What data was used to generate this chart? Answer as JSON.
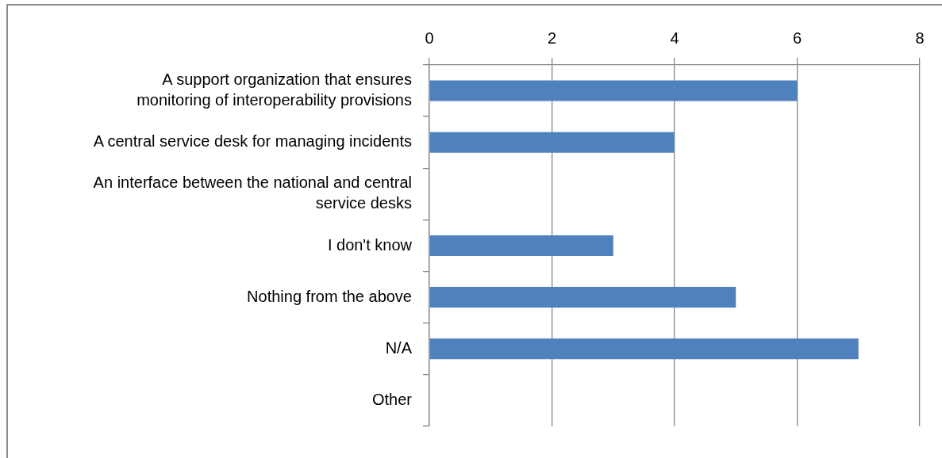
{
  "chart_data": {
    "type": "bar",
    "orientation": "horizontal",
    "categories": [
      "A support organization that ensures monitoring of interoperability provisions",
      "A central service desk for managing incidents",
      "An interface between the national and central service desks",
      "I don't know",
      "Nothing from the above",
      "N/A",
      "Other"
    ],
    "values": [
      6,
      4,
      0,
      3,
      5,
      7,
      0
    ],
    "color": "#4f81bd",
    "xlim": [
      0,
      8
    ],
    "xticks": [
      0,
      2,
      4,
      6,
      8
    ],
    "grid": "x"
  }
}
